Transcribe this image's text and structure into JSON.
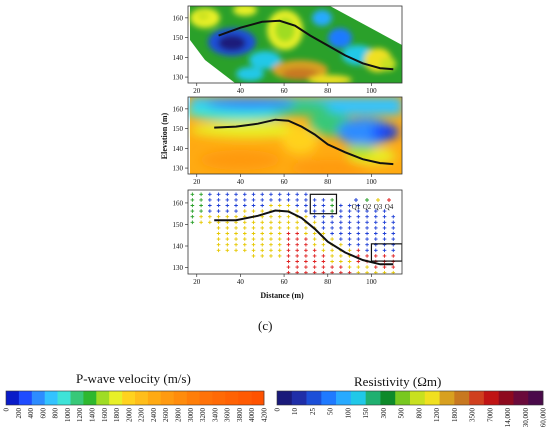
{
  "chart_data": [
    {
      "type": "heatmap",
      "panel": "top",
      "quantity": "Resistivity",
      "x_ticks": [
        20,
        40,
        60,
        80,
        100
      ],
      "y_ticks": [
        130,
        140,
        150,
        160
      ],
      "xlim": [
        16,
        114
      ],
      "ylim": [
        127,
        166
      ],
      "interface_line": {
        "x": [
          30,
          40,
          50,
          58,
          65,
          72,
          80,
          88,
          96,
          104,
          110
        ],
        "y": [
          151,
          155,
          158,
          158.5,
          156,
          151,
          146,
          141,
          137,
          134.5,
          134
        ]
      }
    },
    {
      "type": "heatmap",
      "panel": "middle",
      "quantity": "P-wave velocity",
      "ylabel": "Elevation (m)",
      "x_ticks": [
        20,
        40,
        60,
        80,
        100
      ],
      "y_ticks": [
        130,
        140,
        150,
        160
      ],
      "xlim": [
        16,
        114
      ],
      "ylim": [
        127,
        166
      ],
      "interface_line": {
        "x": [
          28,
          38,
          48,
          56,
          62,
          68,
          74,
          80,
          88,
          96,
          104,
          110
        ],
        "y": [
          150.5,
          151,
          152.5,
          154.5,
          154,
          151,
          147,
          142,
          138,
          134.5,
          132.5,
          132
        ]
      }
    },
    {
      "type": "scatter",
      "panel": "bottom",
      "xlabel": "Distance (m)",
      "x_ticks": [
        20,
        40,
        60,
        80,
        100
      ],
      "y_ticks": [
        130,
        140,
        150,
        160
      ],
      "xlim": [
        16,
        114
      ],
      "ylim": [
        127,
        166
      ],
      "series": [
        {
          "name": "Q1",
          "color": "#1f3fd6"
        },
        {
          "name": "Q2",
          "color": "#2aa02a"
        },
        {
          "name": "Q3",
          "color": "#e6c800"
        },
        {
          "name": "Q4",
          "color": "#e02020"
        }
      ],
      "interface_line": {
        "x": [
          28,
          38,
          48,
          56,
          62,
          68,
          74,
          80,
          88,
          96,
          104,
          110
        ],
        "y": [
          152,
          152,
          154,
          156.5,
          156,
          153,
          148,
          142,
          137,
          133.5,
          131.5,
          131.5
        ]
      },
      "boxes": [
        {
          "x": [
            72,
            84
          ],
          "y": [
            155,
            164
          ]
        },
        {
          "x": [
            100,
            114
          ],
          "y": [
            133,
            141
          ]
        }
      ]
    }
  ],
  "panel_label": "(c)",
  "legend_pwave": {
    "title": "P-wave velocity  (m/s)",
    "colors": [
      "#0a1cc8",
      "#1f4cff",
      "#2d8cff",
      "#33c3ff",
      "#3ee3d8",
      "#38c878",
      "#2eb82e",
      "#9fdc24",
      "#e8f028",
      "#ffd21e",
      "#ffbe1a",
      "#ffaa12",
      "#ff9a10",
      "#ff8c0c",
      "#ff7e08",
      "#ff7208",
      "#ff6a06",
      "#ff6204",
      "#ff5a02",
      "#ff5200"
    ],
    "labels": [
      "0",
      "200",
      "400",
      "600",
      "800",
      "1000",
      "1200",
      "1400",
      "1600",
      "1800",
      "2000",
      "2200",
      "2400",
      "2600",
      "2800",
      "3000",
      "3200",
      "3400",
      "3600",
      "3800",
      "4000",
      "4200"
    ]
  },
  "legend_resistivity": {
    "title": "Resistivity   (Ωm)",
    "colors": [
      "#1a1a7a",
      "#1f2ea8",
      "#1c4fd8",
      "#1f7aff",
      "#28aaff",
      "#20c8e8",
      "#20b070",
      "#0e8a2a",
      "#78c820",
      "#c8e020",
      "#f0e020",
      "#d8a020",
      "#c87820",
      "#d0401e",
      "#c01414",
      "#8e0a1e",
      "#6a0a3a",
      "#4a0a4a"
    ],
    "labels": [
      "0",
      "10",
      "25",
      "50",
      "100",
      "150",
      "300",
      "500",
      "800",
      "1200",
      "1800",
      "3500",
      "7000",
      "14,000",
      "30,000",
      "60,000"
    ]
  }
}
